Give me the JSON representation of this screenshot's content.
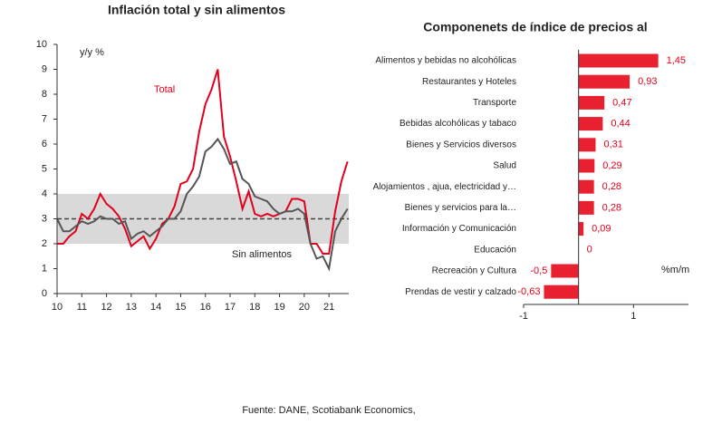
{
  "chart_data": [
    {
      "type": "line",
      "title": "Inflación total y sin alimentos",
      "x": [
        10,
        10.25,
        10.5,
        10.75,
        11,
        11.25,
        11.5,
        11.75,
        12,
        12.25,
        12.5,
        12.75,
        13,
        13.25,
        13.5,
        13.75,
        14,
        14.25,
        14.5,
        14.75,
        15,
        15.25,
        15.5,
        15.75,
        16,
        16.25,
        16.5,
        16.75,
        17,
        17.25,
        17.5,
        17.75,
        18,
        18.25,
        18.5,
        18.75,
        19,
        19.25,
        19.5,
        19.75,
        20,
        20.25,
        20.5,
        20.75,
        21,
        21.25,
        21.5,
        21.75
      ],
      "series": [
        {
          "name": "Total",
          "color": "#e3001b",
          "values": [
            2.0,
            2.0,
            2.3,
            2.5,
            3.2,
            3.0,
            3.4,
            4.0,
            3.6,
            3.4,
            3.1,
            2.6,
            1.9,
            2.1,
            2.3,
            1.8,
            2.2,
            2.8,
            3.0,
            3.5,
            4.4,
            4.5,
            5.0,
            6.5,
            7.6,
            8.2,
            9.0,
            6.3,
            5.5,
            4.5,
            3.4,
            4.1,
            3.2,
            3.1,
            3.2,
            3.1,
            3.2,
            3.3,
            3.8,
            3.8,
            3.7,
            2.0,
            2.0,
            1.6,
            1.6,
            3.3,
            4.5,
            5.3
          ]
        },
        {
          "name": "Sin alimentos",
          "color": "#555555",
          "values": [
            3.0,
            2.5,
            2.5,
            2.7,
            2.9,
            2.8,
            2.9,
            3.1,
            3.0,
            3.0,
            2.8,
            2.9,
            2.2,
            2.4,
            2.5,
            2.3,
            2.5,
            2.7,
            3.0,
            3.0,
            3.3,
            4.0,
            4.3,
            4.7,
            5.7,
            5.9,
            6.2,
            5.8,
            5.2,
            5.3,
            4.6,
            4.4,
            3.9,
            3.8,
            3.7,
            3.4,
            3.2,
            3.3,
            3.3,
            3.4,
            3.2,
            2.0,
            1.4,
            1.5,
            1.0,
            2.5,
            3.0,
            3.4
          ]
        }
      ],
      "y_label": "y/y %",
      "band": [
        2,
        4
      ],
      "band_color": "#d9d9d9",
      "reference_line": 3,
      "xlim": [
        10,
        21.8
      ],
      "xticks": [
        10,
        11,
        12,
        13,
        14,
        15,
        16,
        17,
        18,
        19,
        20,
        21
      ],
      "ylim": [
        0,
        10
      ],
      "yticks": [
        0,
        1,
        2,
        3,
        4,
        5,
        6,
        7,
        8,
        9,
        10
      ]
    },
    {
      "type": "hbar",
      "title": "Componenets de índice de precios al",
      "categories": [
        "Alimentos y bebidas no alcohólicas",
        "Restaurantes y Hoteles",
        "Transporte",
        "Bebidas alcohólicas y tabaco",
        "Bienes y Servicios diversos",
        "Salud",
        "Alojamientos , ajua, electricidad y…",
        "Bienes y servicios para la…",
        "Información y Comunicación",
        "Educación",
        "Recreación y Cultura",
        "Prendas de vestir y calzado"
      ],
      "values": [
        1.45,
        0.93,
        0.47,
        0.44,
        0.31,
        0.29,
        0.28,
        0.28,
        0.09,
        0,
        -0.5,
        -0.63
      ],
      "value_labels": [
        "1,45",
        "0,93",
        "0,47",
        "0,44",
        "0,31",
        "0,29",
        "0,28",
        "0,28",
        "0,09",
        "0",
        "-0,5",
        "-0,63"
      ],
      "color": "#e8202f",
      "x_label": "%m/m",
      "xlim": [
        -1,
        2
      ],
      "xticks": [
        -1,
        1
      ]
    }
  ],
  "source": "Fuente:  DANE, Scotiabank Economics,"
}
